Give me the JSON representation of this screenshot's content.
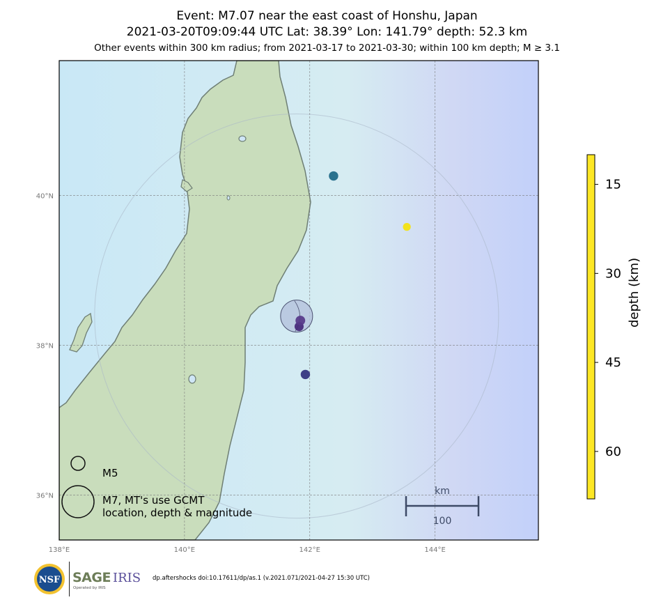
{
  "title": {
    "line1": "Event: M7.07 near the east coast of Honshu, Japan",
    "line2": "2021-03-20T09:09:44 UTC Lat: 38.39° Lon: 141.79° depth: 52.3 km",
    "line3": "Other events within 300 km radius; from 2021-03-17 to 2021-03-30; within 100 km depth; M ≥ 3.1"
  },
  "map": {
    "lon_range": [
      138,
      145.65
    ],
    "lat_range": [
      35.4,
      41.8
    ],
    "lat_ticks": [
      {
        "value": 40,
        "label": "40°N"
      },
      {
        "value": 38,
        "label": "38°N"
      },
      {
        "value": 36,
        "label": "36°N"
      }
    ],
    "lon_ticks": [
      {
        "value": 138,
        "label": "138°E"
      },
      {
        "value": 140,
        "label": "140°E"
      },
      {
        "value": 142,
        "label": "142°E"
      },
      {
        "value": 144,
        "label": "144°E"
      }
    ],
    "search_radius_km": 300,
    "colors": {
      "ocean": "#cfe6f6",
      "ocean_deep": "#c4cef8",
      "land": "#c7dcb9",
      "coastline": "#6e7e74",
      "grid": "#777777",
      "mainshock_fill": "#b4c2dc"
    }
  },
  "mainshock": {
    "lon": 141.79,
    "lat": 38.39,
    "depth": 52.3,
    "mag": 7.07
  },
  "events": [
    {
      "lon": 142.38,
      "lat": 40.26,
      "depth": 47,
      "mag": 4.6,
      "color": "#2a728e"
    },
    {
      "lon": 143.55,
      "lat": 39.58,
      "depth": 12,
      "mag": 4.1,
      "color": "#f2e21c"
    },
    {
      "lon": 141.83,
      "lat": 38.25,
      "depth": 62,
      "mag": 4.5,
      "color": "#46287a"
    },
    {
      "lon": 141.85,
      "lat": 38.33,
      "depth": 58,
      "mag": 4.7,
      "color": "#56398a"
    },
    {
      "lon": 141.93,
      "lat": 37.61,
      "depth": 56,
      "mag": 4.6,
      "color": "#3e3f86"
    }
  ],
  "legend": {
    "m5_label": "M5",
    "m7_label_1": "M7, MT's use GCMT",
    "m7_label_2": "location, depth & magnitude"
  },
  "scalebar": {
    "unit": "km",
    "value": "100"
  },
  "colorbar": {
    "label": "depth (km)",
    "range": [
      10,
      68
    ],
    "ticks": [
      15,
      30,
      45,
      60
    ],
    "colors": [
      "#fde725",
      "#b5de2b",
      "#6ece58",
      "#35b779",
      "#1f9e89",
      "#26828e",
      "#31688e",
      "#3e4989",
      "#482878",
      "#440154"
    ]
  },
  "footer": {
    "note": "dp.aftershocks doi:10.17611/dp/as.1 (v.2021.071/2021-04-27 15:30 UTC)",
    "nsf": "NSF",
    "sage": "SAGE",
    "iris": "IRIS",
    "operated": "Operated by IRIS"
  }
}
